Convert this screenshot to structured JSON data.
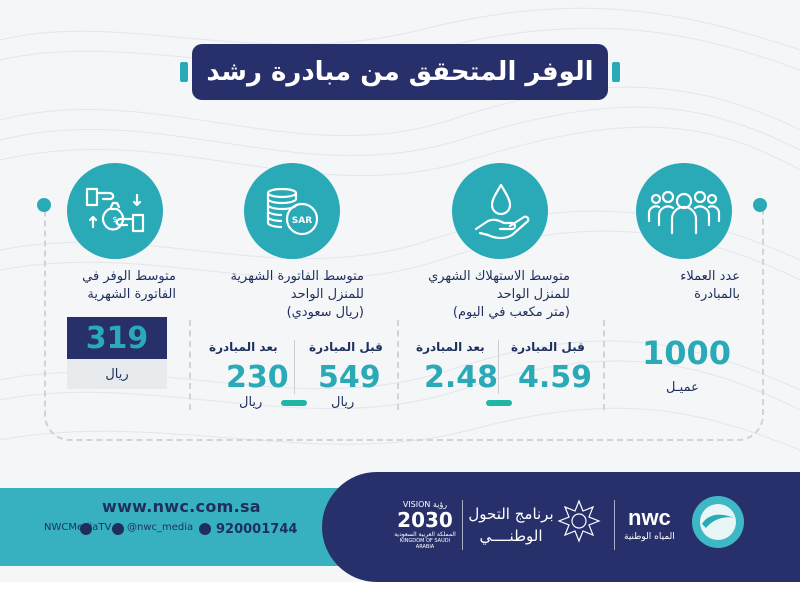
{
  "title": "الوفر المتحقق من مبادرة رشد",
  "colors": {
    "navy": "#27306b",
    "teal": "#2aa9b6",
    "green": "#1fb6a6"
  },
  "columns": {
    "customers": {
      "icon": "people-group-icon",
      "label_line1": "عدد العملاء",
      "label_line2": "بالمبادرة",
      "value": "1000",
      "unit": "عميـل"
    },
    "consumption": {
      "icon": "water-drop-hand-icon",
      "label_line1": "متوسط الاستهلاك الشهري",
      "label_line2": "للمنزل الواحد",
      "label_line3": "(متر مكعب في اليوم)",
      "before_label": "قبل المبادرة",
      "after_label": "بعد المبادرة",
      "before_value": "4.59",
      "after_value": "2.48"
    },
    "bill": {
      "icon": "sar-coins-icon",
      "label_line1": "متوسط الفاتورة الشهرية",
      "label_line2": "للمنزل الواحد",
      "label_line3": "(ريال سعودي)",
      "before_label": "قبل المبادرة",
      "after_label": "بعد المبادرة",
      "before_value": "549",
      "after_value": "230",
      "unit": "ريال"
    },
    "savings": {
      "icon": "money-exchange-icon",
      "label_line1": "متوسط الوفر في",
      "label_line2": "الفاتورة الشهرية",
      "value": "319",
      "unit": "ريال"
    }
  },
  "footer": {
    "website": "www.nwc.com.sa",
    "youtube": "NWCMediaTV",
    "instagram": "@nwc_media",
    "twitter": "920001744",
    "program_line1": "برنامج التحول",
    "program_line2": "الوطنــــي",
    "vision_top": "VISION رؤية",
    "vision_year": "2030",
    "vision_sub1": "المملكة العربية السعودية",
    "vision_sub2": "KINGDOM OF SAUDI ARABIA",
    "nwc_name": "nwc",
    "nwc_arabic": "المياه الوطنية"
  }
}
